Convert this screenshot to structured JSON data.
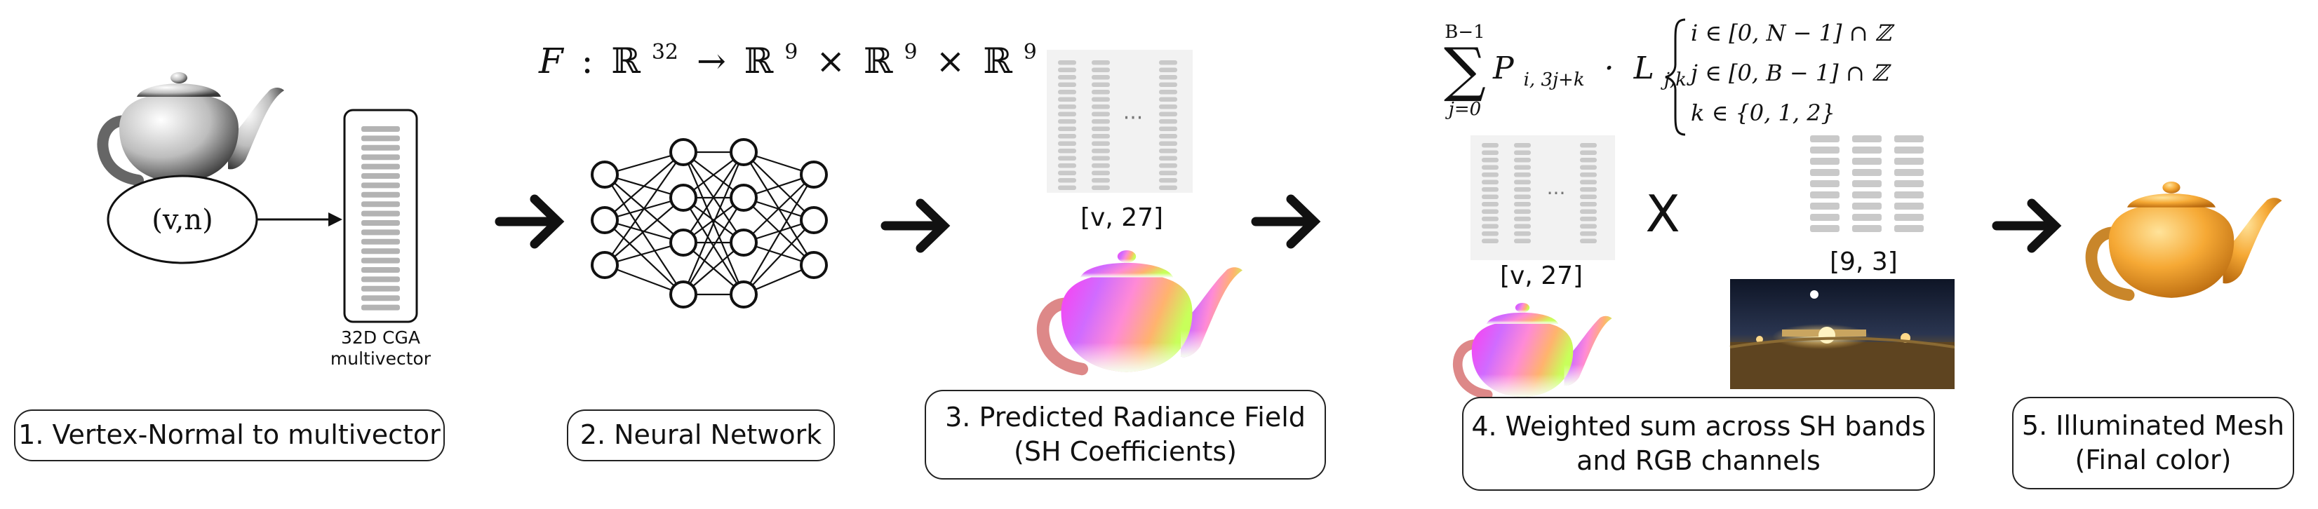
{
  "formula_top": {
    "F": "F",
    "colon": ":",
    "R": "ℝ",
    "dim_in": "32",
    "arrow": "→",
    "dim_out": "9",
    "times": "×"
  },
  "vertex_stage": {
    "input_label": "(v,n)",
    "vector_caption_line1": "32D CGA",
    "vector_caption_line2": "multivector"
  },
  "matrix_ellipsis": "···",
  "stage3": {
    "dim_label": "[v, 27]"
  },
  "stage4": {
    "left_dim_label": "[v, 27]",
    "right_dim_label": "[9, 3]",
    "multiply_symbol": "X",
    "sum_formula": {
      "sum_symbol": "∑",
      "upper_limit": "B−1",
      "lower_limit": "j=0",
      "term": "P",
      "term_subscript": "i, 3j+k",
      "dot": "·",
      "factor": "L",
      "factor_subscript": "j,k",
      "conditions": [
        "i ∈ [0, N − 1] ∩ ℤ",
        "j ∈ [0, B − 1] ∩ ℤ",
        "k ∈ {0, 1, 2}"
      ]
    }
  },
  "captions": [
    {
      "lines": [
        "1. Vertex-Normal to multivector"
      ]
    },
    {
      "lines": [
        "2. Neural Network"
      ]
    },
    {
      "lines": [
        "3. Predicted Radiance Field",
        "(SH Coefficients)"
      ]
    },
    {
      "lines": [
        "4. Weighted sum across SH bands",
        "and RGB channels"
      ]
    },
    {
      "lines": [
        "5. Illuminated Mesh",
        "(Final color)"
      ]
    }
  ],
  "colors": {
    "stroke": "#111111",
    "matrix_bg": "#f2f2f2",
    "matrix_cell": "#c9c9c9",
    "final_mesh": "#f2a33a"
  },
  "icons": [
    "teapot-icon",
    "rainbow-teapot-icon",
    "orange-teapot-icon",
    "hdri-panorama"
  ]
}
